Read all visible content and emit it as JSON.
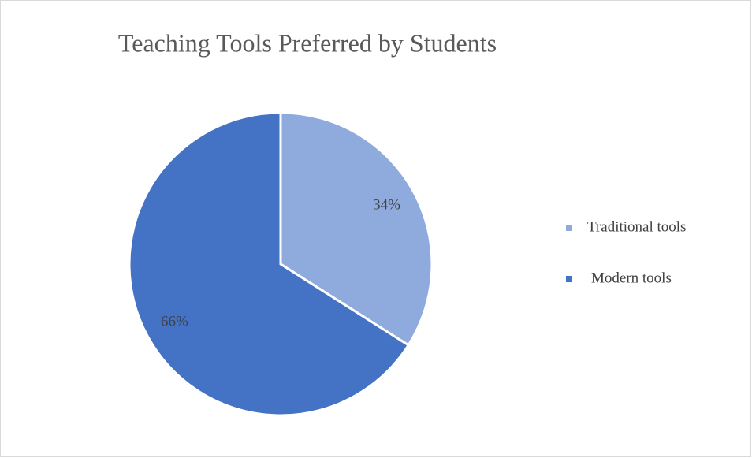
{
  "chart_data": {
    "type": "pie",
    "title": "Teaching Tools Preferred by Students",
    "categories": [
      "Traditional tools",
      "Modern tools"
    ],
    "values": [
      34,
      66
    ],
    "value_labels": [
      "34%",
      "66%"
    ],
    "colors": [
      "#8faadc",
      "#4472c4"
    ],
    "legend": "right"
  }
}
